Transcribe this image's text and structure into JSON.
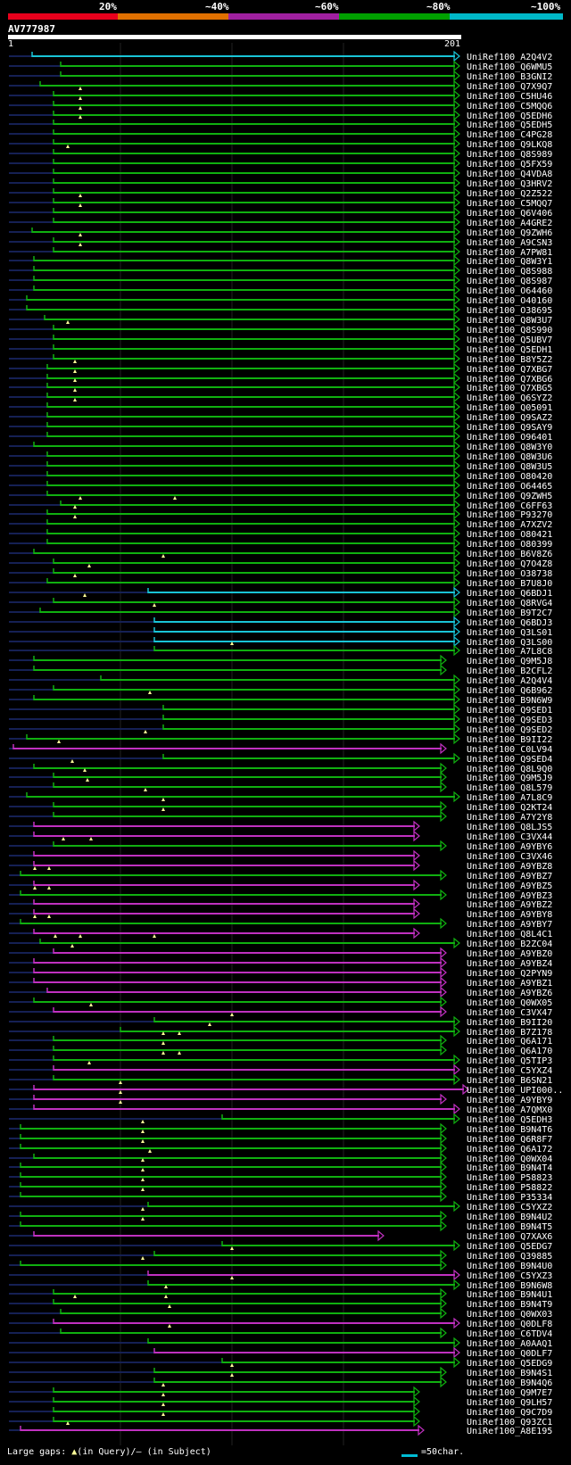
{
  "scale": {
    "labels": [
      "20%",
      "~40%",
      "~60%",
      "~80%",
      "~100%"
    ],
    "colors": [
      "#e8001c",
      "#e07000",
      "#a020a0",
      "#00a000",
      "#00b8c8"
    ]
  },
  "query": {
    "name": "AV777987",
    "start": "1",
    "end": "201"
  },
  "colors": {
    "cyan": "#19c4d6",
    "green": "#10b010",
    "magenta": "#c030c0",
    "dark": "#152054",
    "tri": "#ffff99",
    "grid": "#222222"
  },
  "hits": [
    [
      "UniRef100_A2Q4V2",
      "c",
      36,
      515,
      []
    ],
    [
      "UniRef100_Q6WMU5",
      "g",
      68,
      515,
      []
    ],
    [
      "UniRef100_B3GNI2",
      "g",
      68,
      515,
      []
    ],
    [
      "UniRef100_Q7X9Q7",
      "g",
      45,
      515,
      []
    ],
    [
      "UniRef100_C5HU46",
      "g",
      60,
      515,
      [
        90
      ]
    ],
    [
      "UniRef100_C5MQQ6",
      "g",
      60,
      515,
      [
        90
      ]
    ],
    [
      "UniRef100_Q5EDH6",
      "g",
      60,
      515,
      [
        90
      ]
    ],
    [
      "UniRef100_Q5EDH5",
      "g",
      60,
      515,
      [
        90
      ]
    ],
    [
      "UniRef100_C4PG28",
      "g",
      60,
      515,
      []
    ],
    [
      "UniRef100_Q9LKQ8",
      "g",
      60,
      515,
      []
    ],
    [
      "UniRef100_Q8S989",
      "g",
      60,
      515,
      [
        76
      ]
    ],
    [
      "UniRef100_Q5FX59",
      "g",
      60,
      515,
      []
    ],
    [
      "UniRef100_Q4VDA8",
      "g",
      60,
      515,
      []
    ],
    [
      "UniRef100_Q3HRV2",
      "g",
      60,
      515,
      []
    ],
    [
      "UniRef100_Q2Z522",
      "g",
      60,
      515,
      []
    ],
    [
      "UniRef100_C5MQQ7",
      "g",
      60,
      515,
      [
        90
      ]
    ],
    [
      "UniRef100_Q6V406",
      "g",
      60,
      515,
      [
        90
      ]
    ],
    [
      "UniRef100_A4GRE2",
      "g",
      60,
      515,
      []
    ],
    [
      "UniRef100_Q9ZWH6",
      "g",
      36,
      515,
      []
    ],
    [
      "UniRef100_A9CSN3",
      "g",
      60,
      515,
      [
        90
      ]
    ],
    [
      "UniRef100_A7PW81",
      "g",
      60,
      515,
      [
        90
      ]
    ],
    [
      "UniRef100_Q8W3Y1",
      "g",
      38,
      515,
      []
    ],
    [
      "UniRef100_Q8S988",
      "g",
      38,
      515,
      []
    ],
    [
      "UniRef100_Q8S987",
      "g",
      38,
      515,
      []
    ],
    [
      "UniRef100_O64460",
      "g",
      38,
      515,
      []
    ],
    [
      "UniRef100_O40160",
      "g",
      30,
      515,
      []
    ],
    [
      "UniRef100_O38695",
      "g",
      30,
      515,
      []
    ],
    [
      "UniRef100_Q8W3U7",
      "g",
      50,
      515,
      []
    ],
    [
      "UniRef100_Q8S990",
      "g",
      60,
      515,
      [
        76
      ]
    ],
    [
      "UniRef100_Q5UBV7",
      "g",
      60,
      515,
      []
    ],
    [
      "UniRef100_Q5EDH1",
      "g",
      60,
      515,
      []
    ],
    [
      "UniRef100_B8Y5Z2",
      "g",
      60,
      515,
      []
    ],
    [
      "UniRef100_Q7XBG7",
      "g",
      53,
      515,
      [
        84
      ]
    ],
    [
      "UniRef100_Q7XBG6",
      "g",
      53,
      515,
      [
        84
      ]
    ],
    [
      "UniRef100_Q7XBG5",
      "g",
      53,
      515,
      [
        84
      ]
    ],
    [
      "UniRef100_Q6SYZ2",
      "g",
      53,
      515,
      [
        84
      ]
    ],
    [
      "UniRef100_Q05091",
      "g",
      53,
      515,
      [
        84
      ]
    ],
    [
      "UniRef100_Q9SAZ2",
      "g",
      53,
      515,
      []
    ],
    [
      "UniRef100_Q9SAY9",
      "g",
      53,
      515,
      []
    ],
    [
      "UniRef100_O96401",
      "g",
      53,
      515,
      []
    ],
    [
      "UniRef100_Q8W3Y0",
      "g",
      38,
      515,
      []
    ],
    [
      "UniRef100_Q8W3U6",
      "g",
      53,
      515,
      []
    ],
    [
      "UniRef100_Q8W3U5",
      "g",
      53,
      515,
      []
    ],
    [
      "UniRef100_O80420",
      "g",
      53,
      515,
      []
    ],
    [
      "UniRef100_O64465",
      "g",
      53,
      515,
      []
    ],
    [
      "UniRef100_Q9ZWH5",
      "g",
      53,
      515,
      []
    ],
    [
      "UniRef100_C6FF63",
      "g",
      68,
      515,
      [
        90,
        196
      ]
    ],
    [
      "UniRef100_P93270",
      "g",
      53,
      515,
      [
        84
      ]
    ],
    [
      "UniRef100_A7XZV2",
      "g",
      53,
      515,
      [
        84
      ]
    ],
    [
      "UniRef100_O80421",
      "g",
      53,
      515,
      []
    ],
    [
      "UniRef100_O80399",
      "g",
      53,
      515,
      []
    ],
    [
      "UniRef100_B6V8Z6",
      "g",
      38,
      515,
      []
    ],
    [
      "UniRef100_Q7O4Z8",
      "g",
      60,
      515,
      [
        183
      ]
    ],
    [
      "UniRef100_O38738",
      "g",
      60,
      515,
      [
        100
      ]
    ],
    [
      "UniRef100_B7U8J0",
      "g",
      53,
      515,
      [
        84
      ]
    ],
    [
      "UniRef100_Q6BDJ1",
      "c",
      166,
      515,
      []
    ],
    [
      "UniRef100_Q8RVG4",
      "g",
      60,
      515,
      [
        95
      ]
    ],
    [
      "UniRef100_B9T2C7",
      "g",
      45,
      515,
      [
        173
      ]
    ],
    [
      "UniRef100_Q6BDJ3",
      "c",
      173,
      515,
      []
    ],
    [
      "UniRef100_Q3LS01",
      "c",
      173,
      515,
      []
    ],
    [
      "UniRef100_Q3LS00",
      "c",
      173,
      515,
      []
    ],
    [
      "UniRef100_A7L8C8",
      "g",
      173,
      515,
      [
        260
      ]
    ],
    [
      "UniRef100_Q9M5J8",
      "g",
      38,
      500,
      []
    ],
    [
      "UniRef100_B2CFL2",
      "g",
      38,
      500,
      []
    ],
    [
      "UniRef100_A2Q4V4",
      "g",
      113,
      515,
      []
    ],
    [
      "UniRef100_Q6B962",
      "g",
      60,
      515,
      []
    ],
    [
      "UniRef100_B9N6W9",
      "g",
      38,
      515,
      [
        168
      ]
    ],
    [
      "UniRef100_Q9SED1",
      "g",
      183,
      515,
      []
    ],
    [
      "UniRef100_Q9SED3",
      "g",
      183,
      515,
      []
    ],
    [
      "UniRef100_Q9SED2",
      "g",
      183,
      515,
      []
    ],
    [
      "UniRef100_B9II22",
      "g",
      30,
      515,
      [
        163
      ]
    ],
    [
      "UniRef100_C0LV94",
      "m",
      15,
      500,
      [
        66
      ]
    ],
    [
      "UniRef100_Q9SED4",
      "g",
      183,
      515,
      []
    ],
    [
      "UniRef100_Q8L9Q0",
      "g",
      38,
      500,
      [
        81
      ]
    ],
    [
      "UniRef100_Q9M5J9",
      "g",
      60,
      500,
      [
        95
      ]
    ],
    [
      "UniRef100_Q8L579",
      "g",
      60,
      500,
      [
        98
      ]
    ],
    [
      "UniRef100_A7L8C9",
      "g",
      30,
      515,
      [
        163
      ]
    ],
    [
      "UniRef100_Q2KT24",
      "g",
      60,
      500,
      [
        183
      ]
    ],
    [
      "UniRef100_A7Y2Y8",
      "g",
      60,
      500,
      [
        183
      ]
    ],
    [
      "UniRef100_Q8LJS5",
      "m",
      38,
      470,
      []
    ],
    [
      "UniRef100_C3VX44",
      "m",
      38,
      470,
      []
    ],
    [
      "UniRef100_A9YBY6",
      "g",
      60,
      500,
      [
        71,
        102
      ]
    ],
    [
      "UniRef100_C3VX46",
      "m",
      38,
      470,
      []
    ],
    [
      "UniRef100_A9YBZ8",
      "m",
      38,
      470,
      []
    ],
    [
      "UniRef100_A9YBZ7",
      "g",
      23,
      500,
      [
        39,
        55
      ]
    ],
    [
      "UniRef100_A9YBZ5",
      "m",
      38,
      470,
      []
    ],
    [
      "UniRef100_A9YBZ3",
      "g",
      23,
      500,
      [
        39,
        55
      ]
    ],
    [
      "UniRef100_A9YBZ2",
      "m",
      38,
      470,
      []
    ],
    [
      "UniRef100_A9YBY8",
      "m",
      38,
      470,
      []
    ],
    [
      "UniRef100_A9YBY7",
      "g",
      23,
      500,
      [
        39,
        55
      ]
    ],
    [
      "UniRef100_Q8L4C1",
      "m",
      38,
      470,
      []
    ],
    [
      "UniRef100_B2ZC04",
      "g",
      45,
      515,
      [
        62,
        90,
        173
      ]
    ],
    [
      "UniRef100_A9YBZ0",
      "m",
      60,
      500,
      [
        81
      ]
    ],
    [
      "UniRef100_A9YBZ4",
      "m",
      38,
      500,
      []
    ],
    [
      "UniRef100_Q2PYN9",
      "m",
      38,
      500,
      []
    ],
    [
      "UniRef100_A9YBZ1",
      "m",
      38,
      500,
      []
    ],
    [
      "UniRef100_A9YBZ6",
      "m",
      53,
      500,
      []
    ],
    [
      "UniRef100_Q0WX05",
      "g",
      38,
      500,
      []
    ],
    [
      "UniRef100_C3VX47",
      "m",
      60,
      500,
      [
        102
      ]
    ],
    [
      "UniRef100_B9II20",
      "g",
      173,
      515,
      [
        260
      ]
    ],
    [
      "UniRef100_B7Z178",
      "g",
      135,
      515,
      [
        235
      ]
    ],
    [
      "UniRef100_Q6A171",
      "g",
      60,
      500,
      [
        183,
        201
      ]
    ],
    [
      "UniRef100_Q6A170",
      "g",
      60,
      500,
      [
        183
      ]
    ],
    [
      "UniRef100_Q5TIP3",
      "g",
      60,
      515,
      [
        183,
        201
      ]
    ],
    [
      "UniRef100_C5YXZ4",
      "m",
      60,
      515,
      [
        100
      ]
    ],
    [
      "UniRef100_B6SN21",
      "g",
      60,
      515,
      []
    ],
    [
      "UniRef100_UPI000..",
      "m",
      38,
      525,
      [
        135
      ]
    ],
    [
      "UniRef100_A9YBY9",
      "m",
      38,
      500,
      [
        135
      ]
    ],
    [
      "UniRef100_A7QMX0",
      "m",
      38,
      515,
      [
        135
      ]
    ],
    [
      "UniRef100_Q5EDH3",
      "g",
      249,
      515,
      []
    ],
    [
      "UniRef100_B9N4T6",
      "g",
      23,
      500,
      [
        160
      ]
    ],
    [
      "UniRef100_Q6R8F7",
      "g",
      23,
      500,
      [
        160
      ]
    ],
    [
      "UniRef100_Q6A172",
      "g",
      23,
      500,
      [
        160
      ]
    ],
    [
      "UniRef100_Q0WX04",
      "g",
      38,
      500,
      [
        168
      ]
    ],
    [
      "UniRef100_B9N4T4",
      "g",
      23,
      500,
      [
        160
      ]
    ],
    [
      "UniRef100_P58823",
      "g",
      23,
      500,
      [
        160
      ]
    ],
    [
      "UniRef100_P58822",
      "g",
      23,
      500,
      [
        160
      ]
    ],
    [
      "UniRef100_P35334",
      "g",
      23,
      500,
      [
        160
      ]
    ],
    [
      "UniRef100_C5YXZ2",
      "g",
      166,
      515,
      []
    ],
    [
      "UniRef100_B9N4U2",
      "g",
      23,
      500,
      [
        160
      ]
    ],
    [
      "UniRef100_B9N4T5",
      "g",
      23,
      500,
      [
        160
      ]
    ],
    [
      "UniRef100_Q7XAX6",
      "m",
      38,
      430,
      []
    ],
    [
      "UniRef100_Q5EDG7",
      "g",
      249,
      515,
      []
    ],
    [
      "UniRef100_Q39885",
      "g",
      173,
      500,
      [
        260
      ]
    ],
    [
      "UniRef100_B9N4U0",
      "g",
      23,
      500,
      [
        160
      ]
    ],
    [
      "UniRef100_C5YXZ3",
      "m",
      166,
      515,
      []
    ],
    [
      "UniRef100_B9N6W8",
      "g",
      166,
      515,
      [
        260
      ]
    ],
    [
      "UniRef100_B9N4U1",
      "g",
      60,
      500,
      [
        186
      ]
    ],
    [
      "UniRef100_B9N4T9",
      "g",
      60,
      500,
      [
        84,
        186
      ]
    ],
    [
      "UniRef100_Q0WX03",
      "g",
      68,
      500,
      [
        190
      ]
    ],
    [
      "UniRef100_Q0DLF8",
      "m",
      60,
      515,
      []
    ],
    [
      "UniRef100_C6TDV4",
      "g",
      68,
      500,
      [
        190
      ]
    ],
    [
      "UniRef100_A0AAQ1",
      "g",
      166,
      515,
      []
    ],
    [
      "UniRef100_Q0DLF7",
      "m",
      173,
      515,
      []
    ],
    [
      "UniRef100_Q5EDG9",
      "g",
      249,
      515,
      []
    ],
    [
      "UniRef100_B9N4S1",
      "g",
      173,
      500,
      [
        260
      ]
    ],
    [
      "UniRef100_B9N4Q6",
      "g",
      173,
      500,
      [
        260
      ]
    ],
    [
      "UniRef100_Q9M7E7",
      "g",
      60,
      470,
      [
        183
      ]
    ],
    [
      "UniRef100_Q9LH57",
      "g",
      60,
      470,
      [
        183
      ]
    ],
    [
      "UniRef100_Q9C7D9",
      "g",
      60,
      470,
      [
        183
      ]
    ],
    [
      "UniRef100_Q93ZC1",
      "g",
      60,
      470,
      [
        183
      ]
    ],
    [
      "UniRef100_A8E195",
      "m",
      23,
      475,
      [
        76
      ]
    ]
  ],
  "footer": {
    "gaps_label": "Large gaps:",
    "query_marker": "▲",
    "query_text": "(in Query)/",
    "subject_marker": "—",
    "subject_text": " (in Subject)",
    "legend_text": "=50char."
  }
}
